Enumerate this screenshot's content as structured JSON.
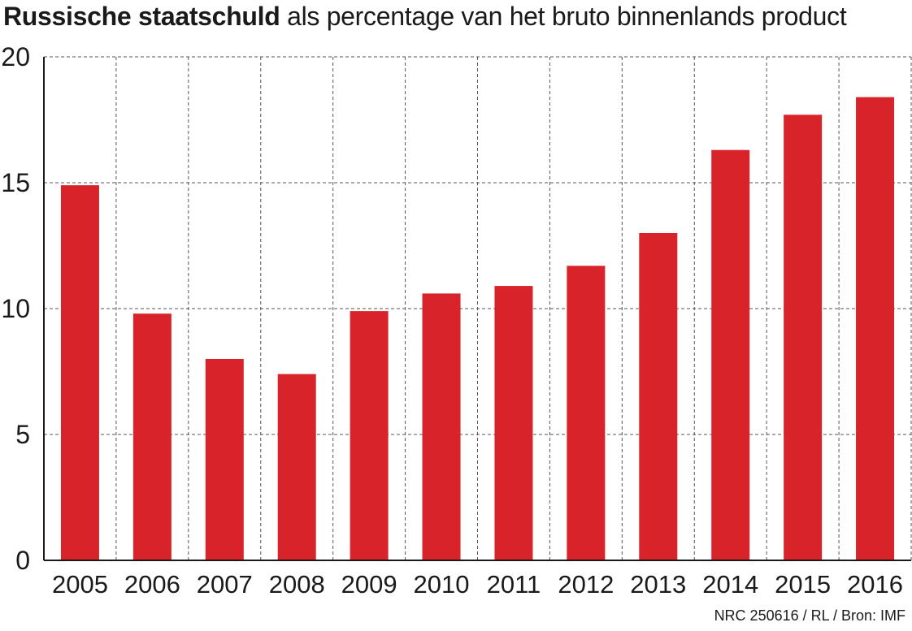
{
  "chart_data": {
    "type": "bar",
    "title_bold": "Russische staatschuld",
    "title_rest": " als percentage van het bruto binnenlands product",
    "categories": [
      "2005",
      "2006",
      "2007",
      "2008",
      "2009",
      "2010",
      "2011",
      "2012",
      "2013",
      "2014",
      "2015",
      "2016"
    ],
    "values": [
      14.9,
      9.8,
      8.0,
      7.4,
      9.9,
      10.6,
      10.9,
      11.7,
      13.0,
      16.3,
      17.7,
      18.4
    ],
    "ylim": [
      0,
      20
    ],
    "yticks": [
      "0",
      "5",
      "10",
      "15",
      "20"
    ],
    "xlabel": "",
    "ylabel": "",
    "grid": true,
    "bar_color": "#d8232a",
    "source": "NRC 250616 / RL / Bron: IMF"
  }
}
